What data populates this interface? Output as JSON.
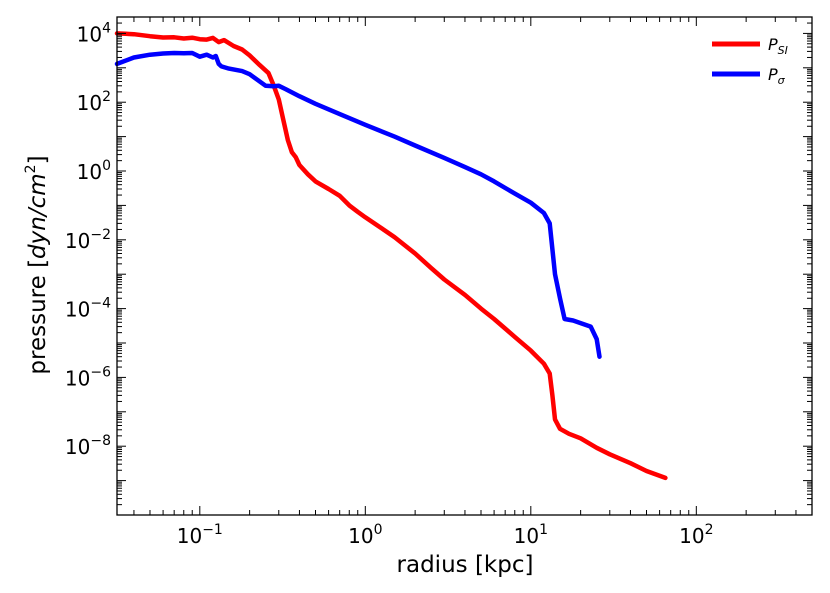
{
  "chart_data": {
    "type": "line",
    "xlabel": "radius [kpc]",
    "ylabel_prefix": "pressure [",
    "ylabel_italic": "dyn/cm",
    "ylabel_sup": "2",
    "ylabel_suffix": "]",
    "xscale": "log",
    "yscale": "log",
    "xlim": [
      0.0316,
      500
    ],
    "ylim": [
      1e-10,
      30000.0
    ],
    "x_ticks": [
      {
        "value": 0.1,
        "base": "10",
        "exp": "−1"
      },
      {
        "value": 1,
        "base": "10",
        "exp": "0"
      },
      {
        "value": 10,
        "base": "10",
        "exp": "1"
      },
      {
        "value": 100,
        "base": "10",
        "exp": "2"
      }
    ],
    "y_ticks": [
      {
        "value": 10000.0,
        "base": "10",
        "exp": "4"
      },
      {
        "value": 100.0,
        "base": "10",
        "exp": "2"
      },
      {
        "value": 1,
        "base": "10",
        "exp": "0"
      },
      {
        "value": 0.01,
        "base": "10",
        "exp": "−2"
      },
      {
        "value": 0.0001,
        "base": "10",
        "exp": "−4"
      },
      {
        "value": 1e-06,
        "base": "10",
        "exp": "−6"
      },
      {
        "value": 1e-08,
        "base": "10",
        "exp": "−8"
      }
    ],
    "grid": false,
    "legend_position": "top-right",
    "series": [
      {
        "name": "P",
        "name_sub": "SI",
        "color": "#ff0000",
        "points": [
          [
            0.0316,
            10000
          ],
          [
            0.04,
            9500
          ],
          [
            0.05,
            8300
          ],
          [
            0.06,
            7600
          ],
          [
            0.07,
            7700
          ],
          [
            0.08,
            7100
          ],
          [
            0.09,
            7500
          ],
          [
            0.1,
            6800
          ],
          [
            0.11,
            6600
          ],
          [
            0.12,
            7400
          ],
          [
            0.13,
            5600
          ],
          [
            0.14,
            6400
          ],
          [
            0.16,
            4300
          ],
          [
            0.18,
            3400
          ],
          [
            0.2,
            2300
          ],
          [
            0.23,
            1200
          ],
          [
            0.26,
            700
          ],
          [
            0.28,
            300
          ],
          [
            0.3,
            120
          ],
          [
            0.32,
            30
          ],
          [
            0.34,
            8
          ],
          [
            0.36,
            3.5
          ],
          [
            0.38,
            2.5
          ],
          [
            0.4,
            1.5
          ],
          [
            0.45,
            0.8
          ],
          [
            0.5,
            0.5
          ],
          [
            0.6,
            0.3
          ],
          [
            0.7,
            0.19
          ],
          [
            0.8,
            0.1
          ],
          [
            0.9,
            0.065
          ],
          [
            1.0,
            0.045
          ],
          [
            1.2,
            0.025
          ],
          [
            1.5,
            0.012
          ],
          [
            2.0,
            0.004
          ],
          [
            2.5,
            0.0015
          ],
          [
            3.0,
            0.0007
          ],
          [
            4.0,
            0.00025
          ],
          [
            5.0,
            0.0001
          ],
          [
            6.0,
            5e-05
          ],
          [
            8.0,
            1.5e-05
          ],
          [
            10,
            6e-06
          ],
          [
            12,
            2.5e-06
          ],
          [
            13,
            1.3e-06
          ],
          [
            13.5,
            3e-07
          ],
          [
            14,
            6e-08
          ],
          [
            15,
            3.2e-08
          ],
          [
            17,
            2.3e-08
          ],
          [
            20,
            1.7e-08
          ],
          [
            25,
            9e-09
          ],
          [
            30,
            5.8e-09
          ],
          [
            40,
            3.2e-09
          ],
          [
            50,
            1.9e-09
          ],
          [
            65,
            1.2e-09
          ]
        ]
      },
      {
        "name": "P",
        "name_sub": "σ",
        "color": "#0000ff",
        "points": [
          [
            0.0316,
            1300
          ],
          [
            0.04,
            2000
          ],
          [
            0.05,
            2400
          ],
          [
            0.06,
            2600
          ],
          [
            0.07,
            2700
          ],
          [
            0.08,
            2650
          ],
          [
            0.09,
            2700
          ],
          [
            0.1,
            2100
          ],
          [
            0.11,
            2400
          ],
          [
            0.12,
            2000
          ],
          [
            0.125,
            2200
          ],
          [
            0.13,
            1300
          ],
          [
            0.135,
            1100
          ],
          [
            0.15,
            950
          ],
          [
            0.18,
            800
          ],
          [
            0.2,
            650
          ],
          [
            0.25,
            300
          ],
          [
            0.28,
            290
          ],
          [
            0.3,
            300
          ],
          [
            0.33,
            240
          ],
          [
            0.4,
            150
          ],
          [
            0.5,
            90
          ],
          [
            0.7,
            45
          ],
          [
            1.0,
            22
          ],
          [
            1.5,
            10
          ],
          [
            2.0,
            5.5
          ],
          [
            3.0,
            2.4
          ],
          [
            4.0,
            1.3
          ],
          [
            5.0,
            0.8
          ],
          [
            6.0,
            0.5
          ],
          [
            8.0,
            0.22
          ],
          [
            10,
            0.12
          ],
          [
            12,
            0.06
          ],
          [
            13,
            0.03
          ],
          [
            14,
            0.001
          ],
          [
            15,
            0.0002
          ],
          [
            16,
            5e-05
          ],
          [
            18,
            4.5e-05
          ],
          [
            20,
            3.8e-05
          ],
          [
            23,
            3e-05
          ],
          [
            25,
            1.3e-05
          ],
          [
            26,
            4e-06
          ]
        ]
      }
    ]
  }
}
